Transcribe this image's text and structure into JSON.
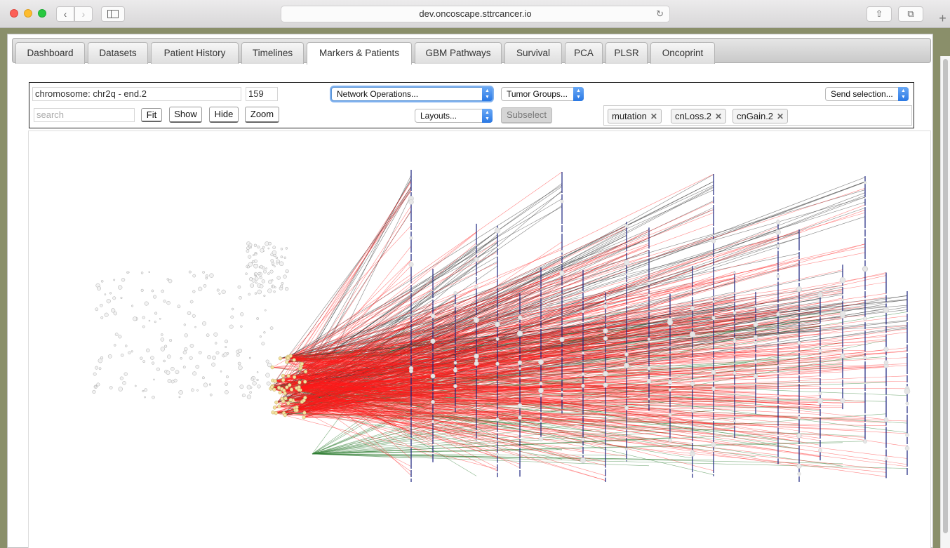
{
  "browser": {
    "url": "dev.oncoscape.sttrcancer.io",
    "back_icon": "‹",
    "forward_icon": "›",
    "reload_icon": "↻",
    "share_icon": "⇧",
    "tabs_icon": "⧉",
    "new_tab_icon": "+"
  },
  "tabs": [
    {
      "label": "Dashboard"
    },
    {
      "label": "Datasets"
    },
    {
      "label": "Patient History"
    },
    {
      "label": "Timelines"
    },
    {
      "label": "Markers & Patients"
    },
    {
      "label": "GBM Pathways"
    },
    {
      "label": "Survival"
    },
    {
      "label": "PCA"
    },
    {
      "label": "PLSR"
    },
    {
      "label": "Oncoprint"
    }
  ],
  "active_tab": "Markers & Patients",
  "controls": {
    "chromosome_value": "chromosome: chr2q - end.2",
    "count_value": "159",
    "search_placeholder": "search",
    "fit_label": "Fit",
    "show_label": "Show",
    "hide_label": "Hide",
    "zoom_label": "Zoom",
    "network_ops": "Network Operations...",
    "tumor_groups": "Tumor Groups...",
    "send_selection": "Send selection...",
    "layouts": "Layouts...",
    "subselect_label": "Subselect",
    "tags": [
      "mutation",
      "cnLoss.2",
      "cnGain.2"
    ],
    "tag_remove_icon": "✕"
  },
  "colors": {
    "mutation_edge": "#ff1a1a",
    "cnloss_edge": "#2e7d32",
    "cngain_edge": "#222222",
    "chromosome_axis": "#1a237e",
    "patient_node": "#f3e2a0",
    "active_tab_bg": "#ffffff"
  }
}
